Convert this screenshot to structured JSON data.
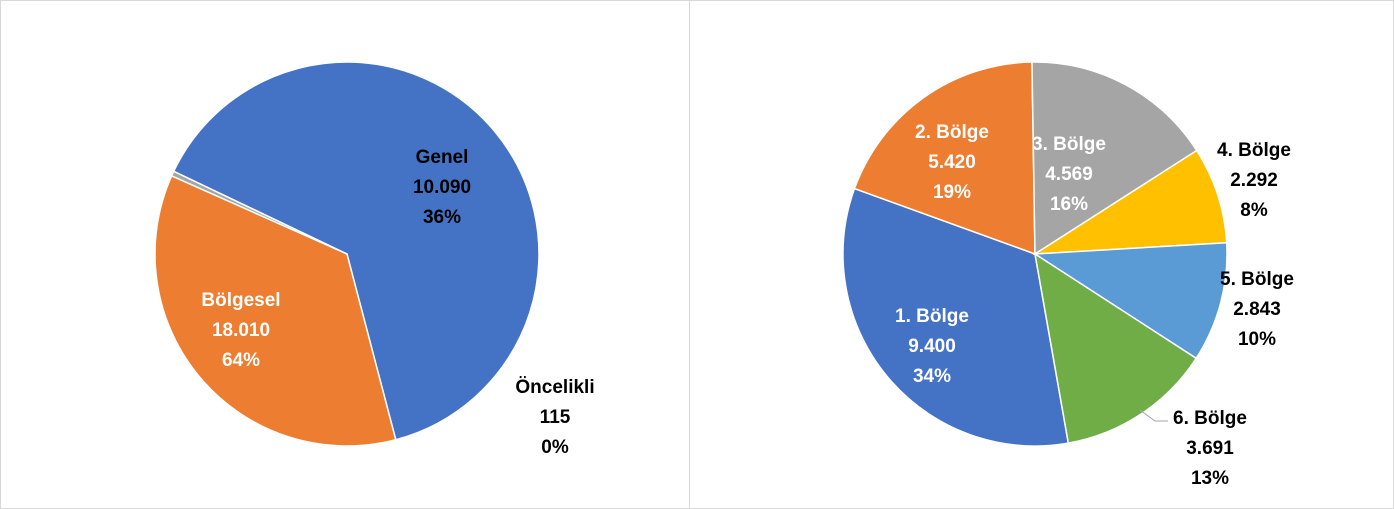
{
  "chart_data": [
    {
      "type": "pie",
      "categories": [
        "Bölgesel",
        "Genel",
        "Öncelikli"
      ],
      "values": [
        18010,
        10090,
        115
      ],
      "value_labels": [
        "18.010",
        "10.090",
        "115"
      ],
      "percent_labels": [
        "64%",
        "36%",
        "0%"
      ],
      "colors": [
        "#4472C4",
        "#ED7D31",
        "#A5A5A5"
      ],
      "start_angle_deg": 0,
      "direction": "clockwise"
    },
    {
      "type": "pie",
      "categories": [
        "1. Bölge",
        "2. Bölge",
        "3. Bölge",
        "4. Bölge",
        "5. Bölge",
        "6. Bölge"
      ],
      "values": [
        9400,
        5420,
        4569,
        2292,
        2843,
        3691
      ],
      "value_labels": [
        "9.400",
        "5.420",
        "4.569",
        "2.292",
        "2.843",
        "3.691"
      ],
      "percent_labels": [
        "34%",
        "19%",
        "16%",
        "8%",
        "10%",
        "13%"
      ],
      "colors": [
        "#4472C4",
        "#ED7D31",
        "#A5A5A5",
        "#FFC000",
        "#5B9BD5",
        "#70AD47"
      ]
    }
  ]
}
